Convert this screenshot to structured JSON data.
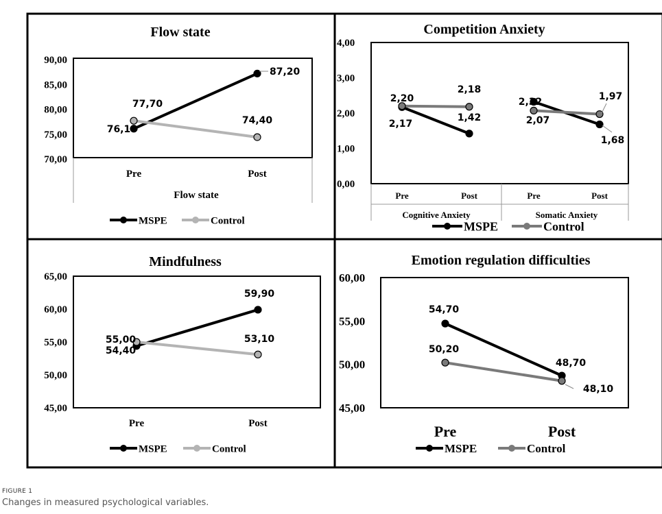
{
  "caption": {
    "label": "FIGURE 1",
    "text": "Changes in measured psychological variables."
  },
  "colors": {
    "mspe": "#000000",
    "control_light": "#b4b4b4",
    "control_dark": "#7a7a7a"
  },
  "chart_data": [
    {
      "type": "line",
      "title": "Flow state",
      "categories": [
        "Pre",
        "Post"
      ],
      "group_label": "Flow state",
      "yticks": [
        "90,00",
        "85,00",
        "80,00",
        "75,00",
        "70,00"
      ],
      "ylim": [
        70,
        90
      ],
      "legend": [
        "MSPE",
        "Control"
      ],
      "series": [
        {
          "name": "MSPE",
          "values": [
            76.1,
            87.2
          ],
          "labels": [
            "76,10",
            "87,20"
          ]
        },
        {
          "name": "Control",
          "values": [
            77.7,
            74.4
          ],
          "labels": [
            "77,70",
            "74,40"
          ]
        }
      ]
    },
    {
      "type": "line",
      "title": "Competition Anxiety",
      "groups": [
        "Cognitive Anxiety",
        "Somatic Anxiety"
      ],
      "categories": [
        "Pre",
        "Post",
        "Pre",
        "Post"
      ],
      "yticks": [
        "4,00",
        "3,00",
        "2,00",
        "1,00",
        "0,00"
      ],
      "ylim": [
        0,
        4
      ],
      "legend": [
        "MSPE",
        "Control"
      ],
      "series": [
        {
          "name": "MSPE",
          "values": [
            2.17,
            1.42,
            2.32,
            1.68
          ],
          "labels": [
            "2,17",
            "1,42",
            "2,32",
            "1,68"
          ]
        },
        {
          "name": "Control",
          "values": [
            2.2,
            2.18,
            2.07,
            1.97
          ],
          "labels": [
            "2,20",
            "2,18",
            "2,07",
            "1,97"
          ]
        }
      ]
    },
    {
      "type": "line",
      "title": "Mindfulness",
      "categories": [
        "Pre",
        "Post"
      ],
      "yticks": [
        "65,00",
        "60,00",
        "55,00",
        "50,00",
        "45,00"
      ],
      "ylim": [
        45,
        65
      ],
      "legend": [
        "MSPE",
        "Control"
      ],
      "series": [
        {
          "name": "MSPE",
          "values": [
            54.4,
            59.9
          ],
          "labels": [
            "54,40",
            "59,90"
          ]
        },
        {
          "name": "Control",
          "values": [
            55.0,
            53.1
          ],
          "labels": [
            "55,00",
            "53,10"
          ]
        }
      ]
    },
    {
      "type": "line",
      "title": "Emotion regulation difficulties",
      "categories": [
        "Pre",
        "Post"
      ],
      "yticks": [
        "60,00",
        "55,00",
        "50,00",
        "45,00"
      ],
      "ylim": [
        45,
        60
      ],
      "legend": [
        "MSPE",
        "Control"
      ],
      "series": [
        {
          "name": "MSPE",
          "values": [
            54.7,
            48.7
          ],
          "labels": [
            "54,70",
            "48,70"
          ]
        },
        {
          "name": "Control",
          "values": [
            50.2,
            48.1
          ],
          "labels": [
            "50,20",
            "48,10"
          ]
        }
      ]
    }
  ]
}
